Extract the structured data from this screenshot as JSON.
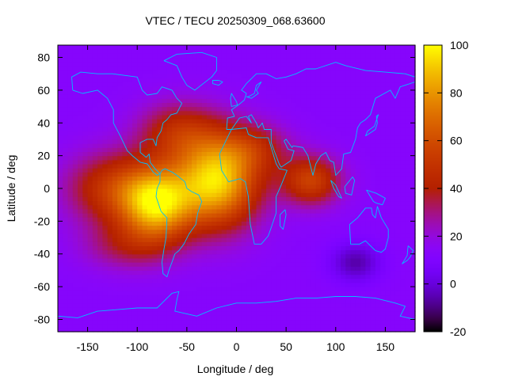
{
  "chart_data": {
    "type": "heatmap",
    "title": "VTEC / TECU 20250309_068.63600",
    "xlabel": "Longitude / deg",
    "ylabel": "Latitude / deg",
    "xlim": [
      -180,
      180
    ],
    "ylim": [
      -87.5,
      87.5
    ],
    "x_ticks": [
      -150,
      -100,
      -50,
      0,
      50,
      100,
      150
    ],
    "x_tick_labels": [
      "-150",
      "-100",
      "-50",
      "0",
      "50",
      "100",
      "150"
    ],
    "y_ticks": [
      -80,
      -60,
      -40,
      -20,
      0,
      20,
      40,
      60,
      80
    ],
    "y_tick_labels": [
      "-80",
      "-60",
      "-40",
      "-20",
      "0",
      "20",
      "40",
      "60",
      "80"
    ],
    "colorbar": {
      "range": [
        -20,
        100
      ],
      "ticks": [
        -20,
        0,
        20,
        40,
        60,
        80,
        100
      ],
      "tick_labels": [
        "-20",
        "0",
        "20",
        "40",
        "60",
        "80",
        "100"
      ],
      "palette": "black-blue-purple-red-orange-yellow"
    },
    "field": {
      "background_tecu": 13,
      "grid_step_deg": 5,
      "features": [
        {
          "name": "south-atlantic-peak",
          "lon": -20,
          "lat": 5,
          "peak_tecu": 93,
          "width_lon": 42,
          "width_lat": 28
        },
        {
          "name": "south-america-peak",
          "lon": -80,
          "lat": -10,
          "peak_tecu": 80,
          "width_lon": 35,
          "width_lat": 22
        },
        {
          "name": "east-pacific-band",
          "lon": -120,
          "lat": 0,
          "peak_tecu": 52,
          "width_lon": 50,
          "width_lat": 22
        },
        {
          "name": "north-atlantic-lobe",
          "lon": -60,
          "lat": 35,
          "peak_tecu": 42,
          "width_lon": 40,
          "width_lat": 18
        },
        {
          "name": "indian-ocean-lobe",
          "lon": 75,
          "lat": 5,
          "peak_tecu": 55,
          "width_lon": 30,
          "width_lat": 15
        },
        {
          "name": "south-pacific-lobe",
          "lon": -110,
          "lat": -35,
          "peak_tecu": 32,
          "width_lon": 45,
          "width_lat": 15
        },
        {
          "name": "africa-north-lobe",
          "lon": 20,
          "lat": 25,
          "peak_tecu": 35,
          "width_lon": 35,
          "width_lat": 15
        },
        {
          "name": "southern-indian-low",
          "lon": 120,
          "lat": -45,
          "peak_tecu": -6,
          "width_lon": 25,
          "width_lat": 12
        }
      ]
    },
    "coastlines": [
      {
        "name": "north-america",
        "points": [
          [
            -165,
            60
          ],
          [
            -155,
            58
          ],
          [
            -140,
            60
          ],
          [
            -130,
            55
          ],
          [
            -124,
            48
          ],
          [
            -124,
            40
          ],
          [
            -117,
            32
          ],
          [
            -110,
            23
          ],
          [
            -105,
            20
          ],
          [
            -97,
            16
          ],
          [
            -90,
            15
          ],
          [
            -84,
            10
          ],
          [
            -80,
            8
          ],
          [
            -77,
            9
          ],
          [
            -82,
            12
          ],
          [
            -87,
            16
          ],
          [
            -88,
            21
          ],
          [
            -91,
            19
          ],
          [
            -97,
            22
          ],
          [
            -97,
            28
          ],
          [
            -90,
            30
          ],
          [
            -84,
            30
          ],
          [
            -81,
            26
          ],
          [
            -80,
            31
          ],
          [
            -76,
            35
          ],
          [
            -74,
            40
          ],
          [
            -70,
            42
          ],
          [
            -66,
            45
          ],
          [
            -60,
            46
          ],
          [
            -55,
            52
          ],
          [
            -60,
            55
          ],
          [
            -65,
            60
          ],
          [
            -75,
            62
          ],
          [
            -80,
            58
          ],
          [
            -90,
            57
          ],
          [
            -95,
            60
          ],
          [
            -100,
            68
          ],
          [
            -125,
            70
          ],
          [
            -140,
            70
          ],
          [
            -157,
            71
          ],
          [
            -166,
            68
          ],
          [
            -165,
            60
          ]
        ]
      },
      {
        "name": "greenland",
        "points": [
          [
            -73,
            78
          ],
          [
            -60,
            82
          ],
          [
            -35,
            83
          ],
          [
            -20,
            80
          ],
          [
            -20,
            72
          ],
          [
            -25,
            68
          ],
          [
            -42,
            60
          ],
          [
            -50,
            63
          ],
          [
            -55,
            68
          ],
          [
            -60,
            75
          ],
          [
            -73,
            78
          ]
        ]
      },
      {
        "name": "south-america",
        "points": [
          [
            -77,
            9
          ],
          [
            -75,
            11
          ],
          [
            -72,
            12
          ],
          [
            -65,
            10
          ],
          [
            -60,
            8
          ],
          [
            -52,
            4
          ],
          [
            -50,
            0
          ],
          [
            -45,
            -2
          ],
          [
            -38,
            -4
          ],
          [
            -35,
            -8
          ],
          [
            -39,
            -15
          ],
          [
            -41,
            -22
          ],
          [
            -48,
            -28
          ],
          [
            -53,
            -34
          ],
          [
            -58,
            -38
          ],
          [
            -62,
            -40
          ],
          [
            -65,
            -45
          ],
          [
            -68,
            -50
          ],
          [
            -70,
            -54
          ],
          [
            -74,
            -52
          ],
          [
            -75,
            -45
          ],
          [
            -73,
            -37
          ],
          [
            -71,
            -30
          ],
          [
            -70,
            -18
          ],
          [
            -76,
            -14
          ],
          [
            -81,
            -5
          ],
          [
            -80,
            0
          ],
          [
            -77,
            4
          ],
          [
            -77,
            9
          ]
        ]
      },
      {
        "name": "africa",
        "points": [
          [
            -17,
            21
          ],
          [
            -10,
            30
          ],
          [
            -5,
            36
          ],
          [
            10,
            37
          ],
          [
            12,
            33
          ],
          [
            20,
            31
          ],
          [
            32,
            31
          ],
          [
            35,
            25
          ],
          [
            40,
            15
          ],
          [
            43,
            12
          ],
          [
            51,
            11
          ],
          [
            45,
            2
          ],
          [
            40,
            -5
          ],
          [
            40,
            -15
          ],
          [
            35,
            -24
          ],
          [
            32,
            -29
          ],
          [
            25,
            -34
          ],
          [
            18,
            -34
          ],
          [
            14,
            -22
          ],
          [
            12,
            -5
          ],
          [
            9,
            4
          ],
          [
            4,
            6
          ],
          [
            -8,
            4
          ],
          [
            -15,
            11
          ],
          [
            -17,
            21
          ]
        ]
      },
      {
        "name": "madagascar",
        "points": [
          [
            44,
            -16
          ],
          [
            49,
            -13
          ],
          [
            50,
            -16
          ],
          [
            47,
            -25
          ],
          [
            44,
            -23
          ],
          [
            44,
            -16
          ]
        ]
      },
      {
        "name": "eurasia",
        "points": [
          [
            -10,
            36
          ],
          [
            -9,
            43
          ],
          [
            -2,
            44
          ],
          [
            -5,
            48
          ],
          [
            2,
            51
          ],
          [
            8,
            54
          ],
          [
            10,
            58
          ],
          [
            5,
            60
          ],
          [
            10,
            64
          ],
          [
            20,
            70
          ],
          [
            30,
            70
          ],
          [
            40,
            67
          ],
          [
            50,
            68
          ],
          [
            60,
            70
          ],
          [
            70,
            73
          ],
          [
            80,
            73
          ],
          [
            100,
            77
          ],
          [
            110,
            75
          ],
          [
            130,
            72
          ],
          [
            150,
            71
          ],
          [
            170,
            70
          ],
          [
            180,
            68
          ],
          [
            180,
            65
          ],
          [
            165,
            62
          ],
          [
            160,
            55
          ],
          [
            155,
            60
          ],
          [
            140,
            55
          ],
          [
            135,
            45
          ],
          [
            130,
            42
          ],
          [
            125,
            40
          ],
          [
            122,
            37
          ],
          [
            120,
            30
          ],
          [
            115,
            22
          ],
          [
            108,
            21
          ],
          [
            106,
            12
          ],
          [
            100,
            8
          ],
          [
            98,
            16
          ],
          [
            94,
            17
          ],
          [
            90,
            22
          ],
          [
            85,
            20
          ],
          [
            80,
            15
          ],
          [
            77,
            8
          ],
          [
            72,
            20
          ],
          [
            67,
            25
          ],
          [
            57,
            26
          ],
          [
            56,
            25
          ],
          [
            50,
            30
          ],
          [
            48,
            29
          ],
          [
            52,
            24
          ],
          [
            58,
            23
          ],
          [
            55,
            17
          ],
          [
            45,
            13
          ],
          [
            43,
            15
          ],
          [
            35,
            28
          ],
          [
            35,
            36
          ],
          [
            28,
            36
          ],
          [
            26,
            40
          ],
          [
            22,
            37
          ],
          [
            20,
            40
          ],
          [
            15,
            45
          ],
          [
            12,
            44
          ],
          [
            15,
            40
          ],
          [
            10,
            44
          ],
          [
            3,
            43
          ],
          [
            -5,
            36
          ],
          [
            -10,
            36
          ]
        ]
      },
      {
        "name": "great-britain",
        "points": [
          [
            -5,
            50
          ],
          [
            1,
            51
          ],
          [
            0,
            53
          ],
          [
            -3,
            56
          ],
          [
            -5,
            58
          ],
          [
            -6,
            55
          ],
          [
            -5,
            50
          ]
        ]
      },
      {
        "name": "scandinavia-sea",
        "points": [
          [
            10,
            56
          ],
          [
            12,
            56
          ],
          [
            18,
            58
          ],
          [
            20,
            63
          ],
          [
            25,
            65
          ],
          [
            20,
            60
          ],
          [
            22,
            58
          ],
          [
            15,
            55
          ],
          [
            10,
            56
          ]
        ]
      },
      {
        "name": "australia",
        "points": [
          [
            114,
            -22
          ],
          [
            122,
            -18
          ],
          [
            130,
            -12
          ],
          [
            136,
            -12
          ],
          [
            137,
            -16
          ],
          [
            140,
            -18
          ],
          [
            142,
            -11
          ],
          [
            146,
            -18
          ],
          [
            153,
            -25
          ],
          [
            153,
            -30
          ],
          [
            150,
            -37
          ],
          [
            146,
            -39
          ],
          [
            140,
            -38
          ],
          [
            135,
            -35
          ],
          [
            130,
            -32
          ],
          [
            124,
            -34
          ],
          [
            115,
            -34
          ],
          [
            114,
            -22
          ]
        ]
      },
      {
        "name": "sumatra",
        "points": [
          [
            95,
            5
          ],
          [
            100,
            2
          ],
          [
            106,
            -6
          ],
          [
            103,
            -5
          ],
          [
            98,
            0
          ],
          [
            95,
            5
          ]
        ]
      },
      {
        "name": "borneo",
        "points": [
          [
            109,
            1
          ],
          [
            117,
            7
          ],
          [
            119,
            5
          ],
          [
            116,
            -4
          ],
          [
            110,
            -3
          ],
          [
            109,
            1
          ]
        ]
      },
      {
        "name": "new-guinea",
        "points": [
          [
            131,
            -1
          ],
          [
            141,
            -3
          ],
          [
            150,
            -6
          ],
          [
            147,
            -10
          ],
          [
            141,
            -9
          ],
          [
            138,
            -8
          ],
          [
            131,
            -1
          ]
        ]
      },
      {
        "name": "japan",
        "points": [
          [
            130,
            32
          ],
          [
            135,
            34
          ],
          [
            140,
            36
          ],
          [
            142,
            40
          ],
          [
            141,
            44
          ],
          [
            143,
            45
          ],
          [
            139,
            38
          ],
          [
            132,
            35
          ],
          [
            130,
            32
          ]
        ]
      },
      {
        "name": "new-zealand",
        "points": [
          [
            173,
            -35
          ],
          [
            178,
            -38
          ],
          [
            175,
            -42
          ],
          [
            172,
            -44
          ],
          [
            167,
            -46
          ],
          [
            172,
            -41
          ],
          [
            173,
            -35
          ]
        ]
      },
      {
        "name": "antarctica",
        "points": [
          [
            -180,
            -78
          ],
          [
            -160,
            -79
          ],
          [
            -140,
            -75
          ],
          [
            -120,
            -74
          ],
          [
            -100,
            -73
          ],
          [
            -80,
            -73
          ],
          [
            -65,
            -64
          ],
          [
            -58,
            -63
          ],
          [
            -60,
            -68
          ],
          [
            -62,
            -75
          ],
          [
            -40,
            -78
          ],
          [
            -20,
            -73
          ],
          [
            0,
            -70
          ],
          [
            20,
            -70
          ],
          [
            40,
            -69
          ],
          [
            60,
            -67
          ],
          [
            80,
            -67
          ],
          [
            100,
            -66
          ],
          [
            120,
            -66
          ],
          [
            140,
            -67
          ],
          [
            160,
            -70
          ],
          [
            170,
            -72
          ],
          [
            165,
            -78
          ],
          [
            180,
            -80
          ]
        ]
      },
      {
        "name": "iceland",
        "points": [
          [
            -24,
            64
          ],
          [
            -18,
            63
          ],
          [
            -14,
            65
          ],
          [
            -18,
            66
          ],
          [
            -24,
            66
          ],
          [
            -24,
            64
          ]
        ]
      }
    ]
  }
}
